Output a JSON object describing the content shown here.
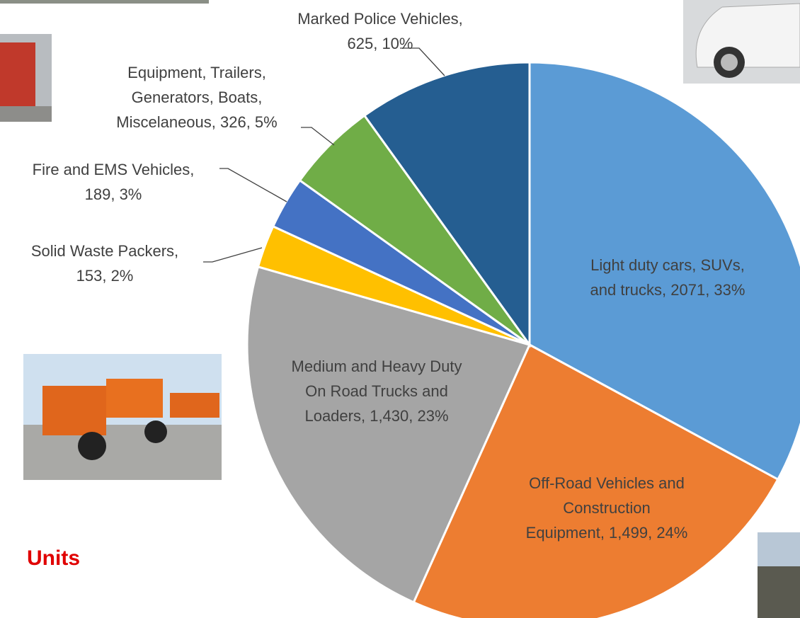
{
  "chart_data": {
    "type": "pie",
    "categories": [
      "Light duty cars, SUVs, and trucks",
      "Off-Road Vehicles and Construction Equipment",
      "Medium and Heavy Duty On Road Trucks and Loaders",
      "Solid Waste Packers",
      "Fire and EMS Vehicles",
      "Equipment, Trailers, Generators, Boats, Miscelaneous",
      "Marked Police Vehicles"
    ],
    "values": [
      2071,
      1499,
      1430,
      153,
      189,
      326,
      625
    ],
    "value_labels": [
      "Light duty cars, SUVs,\nand trucks, 2071, 33%",
      "Off-Road Vehicles and\nConstruction\nEquipment, 1,499, 24%",
      "Medium and Heavy Duty\nOn Road Trucks and\nLoaders, 1,430, 23%",
      "Solid Waste Packers,\n153, 2%",
      "Fire and EMS Vehicles,\n189, 3%",
      "Equipment, Trailers,\nGenerators, Boats,\nMiscelaneous, 326, 5%",
      "Marked Police Vehicles,\n625, 10%"
    ],
    "colors": [
      "#5b9bd5",
      "#ed7d31",
      "#a5a5a5",
      "#ffc000",
      "#4472c4",
      "#70ad47",
      "#255e91"
    ],
    "annotation": "Units"
  }
}
